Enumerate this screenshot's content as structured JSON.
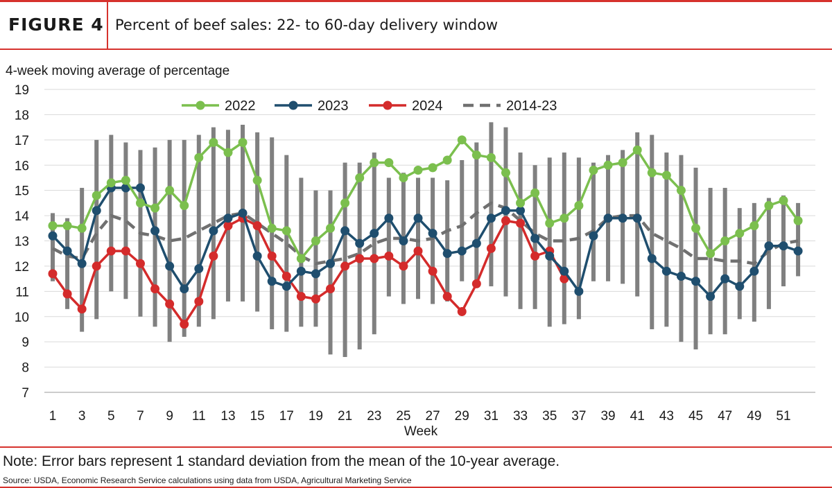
{
  "header": {
    "figure_label": "FIGURE 4",
    "title": "Percent of beef sales: 22- to 60-day delivery window"
  },
  "footer": {
    "note": "Note: Error bars represent 1 standard deviation from the mean of the 10-year average.",
    "source": "Source: USDA, Economic Research Service calculations using data from USDA, Agricultural Marketing Service"
  },
  "colors": {
    "accent": "#d6322d",
    "s2022": "#7bbf4e",
    "s2023": "#1f4e6e",
    "s2024": "#d42b2b",
    "s2014_23": "#707070",
    "error_bar": "#808080"
  },
  "chart_data": {
    "type": "line",
    "ylabel": "4-week moving average of percentage",
    "xlabel": "Week",
    "ylim": [
      7,
      19
    ],
    "xlim": [
      1,
      52
    ],
    "y_ticks": [
      7,
      8,
      9,
      10,
      11,
      12,
      13,
      14,
      15,
      16,
      17,
      18,
      19
    ],
    "x_ticks": [
      1,
      3,
      5,
      7,
      9,
      11,
      13,
      15,
      17,
      19,
      21,
      23,
      25,
      27,
      29,
      31,
      33,
      35,
      37,
      39,
      41,
      43,
      45,
      47,
      49,
      51
    ],
    "grid": "horizontal",
    "legend_position": "top",
    "series": [
      {
        "name": "2022",
        "style": "line-markers",
        "color": "#7bbf4e",
        "x": [
          1,
          2,
          3,
          4,
          5,
          6,
          7,
          8,
          9,
          10,
          11,
          12,
          13,
          14,
          15,
          16,
          17,
          18,
          19,
          20,
          21,
          22,
          23,
          24,
          25,
          26,
          27,
          28,
          29,
          30,
          31,
          32,
          33,
          34,
          35,
          36,
          37,
          38,
          39,
          40,
          41,
          42,
          43,
          44,
          45,
          46,
          47,
          48,
          49,
          50,
          51,
          52
        ],
        "values": [
          13.6,
          13.6,
          13.5,
          14.8,
          15.3,
          15.4,
          14.5,
          14.3,
          15.0,
          14.4,
          16.3,
          16.9,
          16.5,
          16.9,
          15.4,
          13.5,
          13.4,
          12.3,
          13.0,
          13.5,
          14.5,
          15.5,
          16.1,
          16.1,
          15.5,
          15.8,
          15.9,
          16.2,
          17.0,
          16.4,
          16.3,
          15.7,
          14.5,
          14.9,
          13.7,
          13.9,
          14.4,
          15.8,
          16.0,
          16.1,
          16.6,
          15.7,
          15.6,
          15.0,
          13.5,
          12.5,
          13.0,
          13.3,
          13.6,
          14.4,
          14.6,
          13.8
        ]
      },
      {
        "name": "2023",
        "style": "line-markers",
        "color": "#1f4e6e",
        "x": [
          1,
          2,
          3,
          4,
          5,
          6,
          7,
          8,
          9,
          10,
          11,
          12,
          13,
          14,
          15,
          16,
          17,
          18,
          19,
          20,
          21,
          22,
          23,
          24,
          25,
          26,
          27,
          28,
          29,
          30,
          31,
          32,
          33,
          34,
          35,
          36,
          37,
          38,
          39,
          40,
          41,
          42,
          43,
          44,
          45,
          46,
          47,
          48,
          49,
          50,
          51,
          52
        ],
        "values": [
          13.2,
          12.6,
          12.1,
          14.2,
          15.1,
          15.1,
          15.1,
          13.4,
          12.0,
          11.1,
          11.9,
          13.4,
          13.9,
          14.1,
          12.4,
          11.4,
          11.2,
          11.8,
          11.7,
          12.1,
          13.4,
          12.9,
          13.3,
          13.9,
          13.0,
          13.9,
          13.3,
          12.5,
          12.6,
          12.9,
          13.9,
          14.2,
          14.2,
          13.1,
          12.4,
          11.8,
          11.0,
          13.2,
          13.9,
          13.9,
          13.9,
          12.3,
          11.8,
          11.6,
          11.4,
          10.8,
          11.5,
          11.2,
          11.8,
          12.8,
          12.8,
          12.6
        ]
      },
      {
        "name": "2024",
        "style": "line-markers",
        "color": "#d42b2b",
        "x": [
          1,
          2,
          3,
          4,
          5,
          6,
          7,
          8,
          9,
          10,
          11,
          12,
          13,
          14,
          15,
          16,
          17,
          18,
          19,
          20,
          21,
          22,
          23,
          24,
          25,
          26,
          27,
          28,
          29,
          30,
          31,
          32,
          33,
          34,
          35,
          36
        ],
        "values": [
          11.7,
          10.9,
          10.3,
          12.0,
          12.6,
          12.6,
          12.1,
          11.1,
          10.5,
          9.7,
          10.6,
          12.4,
          13.6,
          13.9,
          13.6,
          12.4,
          11.6,
          10.8,
          10.7,
          11.1,
          12.0,
          12.3,
          12.3,
          12.4,
          12.0,
          12.6,
          11.8,
          10.8,
          10.2,
          11.3,
          12.7,
          13.8,
          13.7,
          12.4,
          12.6,
          11.5
        ]
      },
      {
        "name": "2014-23",
        "style": "dashed",
        "color": "#707070",
        "x": [
          1,
          2,
          3,
          4,
          5,
          6,
          7,
          8,
          9,
          10,
          11,
          12,
          13,
          14,
          15,
          16,
          17,
          18,
          19,
          20,
          21,
          22,
          23,
          24,
          25,
          26,
          27,
          28,
          29,
          30,
          31,
          32,
          33,
          34,
          35,
          36,
          37,
          38,
          39,
          40,
          41,
          42,
          43,
          44,
          45,
          46,
          47,
          48,
          49,
          50,
          51,
          52
        ],
        "values": [
          12.7,
          12.4,
          12.3,
          13.3,
          14.0,
          13.8,
          13.3,
          13.2,
          13.0,
          13.1,
          13.4,
          13.7,
          14.0,
          14.1,
          13.7,
          13.3,
          12.9,
          12.4,
          12.1,
          12.2,
          12.3,
          12.5,
          12.9,
          13.1,
          13.1,
          13.0,
          13.1,
          13.4,
          13.6,
          14.1,
          14.5,
          14.3,
          13.8,
          13.3,
          13.0,
          13.0,
          13.1,
          13.4,
          13.9,
          14.0,
          14.0,
          13.3,
          13.0,
          12.7,
          12.3,
          12.3,
          12.2,
          12.2,
          12.1,
          12.6,
          12.9,
          13.0
        ]
      }
    ],
    "error_bars": {
      "series": "2014-23",
      "x": [
        1,
        2,
        3,
        4,
        5,
        6,
        7,
        8,
        9,
        10,
        11,
        12,
        13,
        14,
        15,
        16,
        17,
        18,
        19,
        20,
        21,
        22,
        23,
        24,
        25,
        26,
        27,
        28,
        29,
        30,
        31,
        32,
        33,
        34,
        35,
        36,
        37,
        38,
        39,
        40,
        41,
        42,
        43,
        44,
        45,
        46,
        47,
        48,
        49,
        50,
        51,
        52
      ],
      "low": [
        11.4,
        10.3,
        9.4,
        9.9,
        11.0,
        10.7,
        10.0,
        9.6,
        9.0,
        9.2,
        9.6,
        9.9,
        10.6,
        10.6,
        10.2,
        9.5,
        9.4,
        9.6,
        9.6,
        8.5,
        8.4,
        8.7,
        9.3,
        10.8,
        10.5,
        10.7,
        10.5,
        10.6,
        11.4,
        11.3,
        11.2,
        10.8,
        10.3,
        10.3,
        9.6,
        9.7,
        9.9,
        11.4,
        11.4,
        11.3,
        10.8,
        9.5,
        9.6,
        9.0,
        8.7,
        9.3,
        9.3,
        9.9,
        9.8,
        10.3,
        11.2,
        11.6
      ],
      "high": [
        14.1,
        13.9,
        15.1,
        17.0,
        17.2,
        16.9,
        16.6,
        16.7,
        17.0,
        17.0,
        17.2,
        17.5,
        17.4,
        17.6,
        17.3,
        17.1,
        16.4,
        15.5,
        15.0,
        15.0,
        16.1,
        16.1,
        16.5,
        15.5,
        15.7,
        15.5,
        15.5,
        15.4,
        16.2,
        16.9,
        17.7,
        17.5,
        16.5,
        16.0,
        16.3,
        16.5,
        16.3,
        16.1,
        16.4,
        16.6,
        17.3,
        17.2,
        16.5,
        16.4,
        15.9,
        15.1,
        15.1,
        14.3,
        14.5,
        14.7,
        14.8,
        14.5
      ]
    }
  }
}
